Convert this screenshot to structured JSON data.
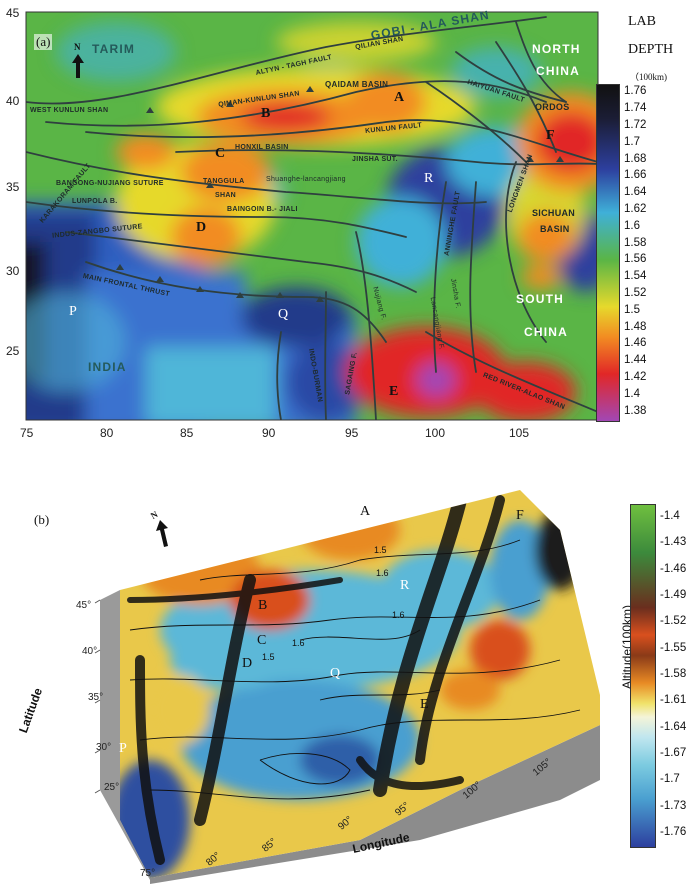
{
  "map_a": {
    "panel_label": "(a)",
    "north_label": "N",
    "y_ticks": [
      "45",
      "40",
      "35",
      "30",
      "25"
    ],
    "x_ticks": [
      "75",
      "80",
      "85",
      "90",
      "95",
      "100",
      "105"
    ],
    "legend_title_1": "LAB",
    "legend_title_2": "DEPTH",
    "legend_unit": "（100km)",
    "legend_values": [
      "1.76",
      "1.74",
      "1.72",
      "1.7",
      "1.68",
      "1.66",
      "1.64",
      "1.62",
      "1.6",
      "1.58",
      "1.56",
      "1.54",
      "1.52",
      "1.5",
      "1.48",
      "1.46",
      "1.44",
      "1.42",
      "1.4",
      "1.38"
    ],
    "point_labels": {
      "A": "A",
      "B": "B",
      "C": "C",
      "D": "D",
      "E": "E",
      "F": "F",
      "P": "P",
      "Q": "Q",
      "R": "R"
    },
    "region_labels": {
      "tarim": "TARIM",
      "north": "NORTH",
      "china_n": "CHINA",
      "gobi": "GOBI - ALA SHAN",
      "south": "SOUTH",
      "china_s": "CHINA",
      "india": "INDIA",
      "qaidam": "QAIDAM BASIN",
      "altyn": "ALTYN - TAGH FAULT",
      "qilian": "QILIAN SHAN",
      "qiman": "QIMAN-KUNLUN SHAN",
      "west_kunlun": "WEST KUNLUN SHAN",
      "kunlun_fault": "KUNLUN FAULT",
      "haiyuan": "HAIYUAN FAULT",
      "ordos": "ORDOS",
      "honxil": "HONXIL BASIN",
      "jinsha_sut": "JINSHA SUT.",
      "tanggula": "TANGGULA",
      "shan": "SHAN",
      "shuanghe": "Shuanghe-lancangjiang",
      "bangong": "BANGONG-NUJIANG SUTURE",
      "lunpola": "LUNPOLA B.",
      "baingoin": "BAINGOIN B.- JIALI",
      "yarlung": "INDUS-ZANGBO SUTURE",
      "mft": "MAIN FRONTAL THRUST",
      "sichuan": "SICHUAN",
      "basin": "BASIN",
      "anninghe": "ANNINGHE FAULT",
      "lancang": "Lancangjiang F.",
      "jinsha_f": "Jinsha F.",
      "nujiang": "Nujiang F.",
      "red_river": "RED RIVER-ALAO SHAN",
      "sagaing": "SAGAING F.",
      "indo_burman": "INDO-BURMAN",
      "karakoram": "KARAKORAM FAULT",
      "longmen": "LONGMEN SHAN"
    }
  },
  "map_b": {
    "panel_label": "(b)",
    "north_label": "N",
    "legend_title": "Altitude(100km)",
    "legend_values": [
      "-1.4",
      "-1.43",
      "-1.46",
      "-1.49",
      "-1.52",
      "-1.55",
      "-1.58",
      "-1.61",
      "-1.64",
      "-1.67",
      "-1.7",
      "-1.73",
      "-1.76"
    ],
    "axis_latitude": "Latitude",
    "axis_longitude": "Longitude",
    "lat_ticks": [
      "45°",
      "40°",
      "35°",
      "30°",
      "25°"
    ],
    "lon_ticks": [
      "75°",
      "80°",
      "85°",
      "90°",
      "95°",
      "100°",
      "105°"
    ],
    "contour_labels": [
      "1.5",
      "1.6",
      "1.6",
      "1.5",
      "1.6"
    ],
    "point_labels": {
      "A": "A",
      "B": "B",
      "C": "C",
      "D": "D",
      "E": "E",
      "F": "F",
      "P": "P",
      "Q": "Q",
      "R": "R"
    }
  },
  "colors": {
    "deep": "#1a1a2a",
    "blue": "#2d3f9e",
    "cyan": "#3fb0d8",
    "green": "#5ab546",
    "yellow": "#e6d92c",
    "orange": "#f28c22",
    "red": "#e12727",
    "purple": "#a247b5",
    "fault": "#2f3f3f",
    "terrain_side": "#9a9a9a"
  }
}
